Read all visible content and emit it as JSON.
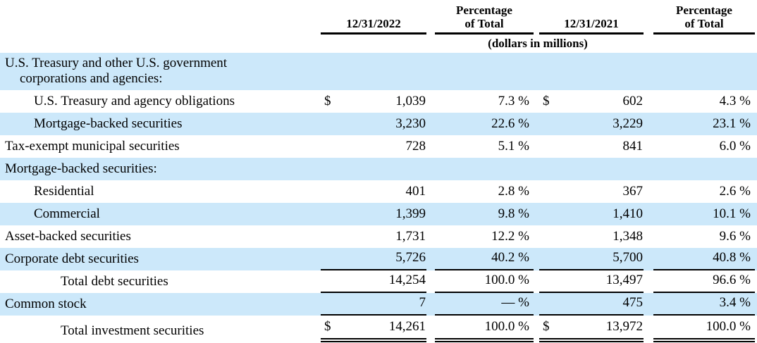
{
  "document": {
    "kind": "financial-table",
    "units_note": "(dollars in millions)"
  },
  "colors": {
    "row_highlight": "#cce8fa",
    "text": "#000000",
    "rule": "#000000"
  },
  "table": {
    "column_headers": {
      "period_2022": "12/31/2022",
      "pct_2022_line1": "Percentage",
      "pct_2022_line2": "of Total",
      "period_2021": "12/31/2021",
      "pct_2021_line1": "Percentage",
      "pct_2021_line2": "of Total"
    },
    "rows": [
      {
        "label": "U.S. Treasury and other U.S. government",
        "label2": "corporations and agencies:",
        "indent": 0,
        "shaded": true,
        "d22": "",
        "v22": "",
        "p22": "",
        "d21": "",
        "v21": "",
        "p21": "",
        "underline": "none"
      },
      {
        "label": "U.S. Treasury and agency obligations",
        "indent": 1,
        "shaded": false,
        "d22": "$",
        "v22": "1,039",
        "p22": "7.3 %",
        "d21": "$",
        "v21": "602",
        "p21": "4.3 %",
        "underline": "none"
      },
      {
        "label": "Mortgage-backed securities",
        "indent": 1,
        "shaded": true,
        "d22": "",
        "v22": "3,230",
        "p22": "22.6 %",
        "d21": "",
        "v21": "3,229",
        "p21": "23.1 %",
        "underline": "none"
      },
      {
        "label": "Tax-exempt municipal securities",
        "indent": 0,
        "shaded": false,
        "d22": "",
        "v22": "728",
        "p22": "5.1 %",
        "d21": "",
        "v21": "841",
        "p21": "6.0 %",
        "underline": "none"
      },
      {
        "label": "Mortgage-backed securities:",
        "indent": 0,
        "shaded": true,
        "d22": "",
        "v22": "",
        "p22": "",
        "d21": "",
        "v21": "",
        "p21": "",
        "underline": "none"
      },
      {
        "label": "Residential",
        "indent": 1,
        "shaded": false,
        "d22": "",
        "v22": "401",
        "p22": "2.8 %",
        "d21": "",
        "v21": "367",
        "p21": "2.6 %",
        "underline": "none"
      },
      {
        "label": "Commercial",
        "indent": 1,
        "shaded": true,
        "d22": "",
        "v22": "1,399",
        "p22": "9.8 %",
        "d21": "",
        "v21": "1,410",
        "p21": "10.1 %",
        "underline": "none"
      },
      {
        "label": "Asset-backed securities",
        "indent": 0,
        "shaded": false,
        "d22": "",
        "v22": "1,731",
        "p22": "12.2 %",
        "d21": "",
        "v21": "1,348",
        "p21": "9.6 %",
        "underline": "none"
      },
      {
        "label": "Corporate debt securities",
        "indent": 0,
        "shaded": true,
        "d22": "",
        "v22": "5,726",
        "p22": "40.2 %",
        "d21": "",
        "v21": "5,700",
        "p21": "40.8 %",
        "underline": "single"
      },
      {
        "label": "Total debt securities",
        "indent": 2,
        "shaded": false,
        "d22": "",
        "v22": "14,254",
        "p22": "100.0 %",
        "d21": "",
        "v21": "13,497",
        "p21": "96.6 %",
        "underline": "single"
      },
      {
        "label": "Common stock",
        "indent": 0,
        "shaded": true,
        "d22": "",
        "v22": "7",
        "p22": "— %",
        "d21": "",
        "v21": "475",
        "p21": "3.4 %",
        "underline": "single"
      },
      {
        "label": "Total investment securities",
        "indent": 2,
        "shaded": false,
        "d22": "$",
        "v22": "14,261",
        "p22": "100.0 %",
        "d21": "$",
        "v21": "13,972",
        "p21": "100.0 %",
        "underline": "double"
      }
    ]
  }
}
